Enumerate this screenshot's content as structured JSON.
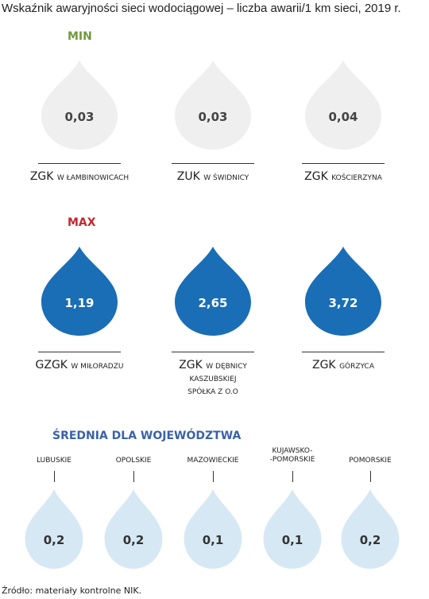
{
  "title": "Wskaźnik awaryjności sieci wodociągowej – liczba awarii/1 km sieci, 2019 r.",
  "min": {
    "heading": "MIN",
    "items": [
      {
        "value": "0,03",
        "name": "ZGK",
        "detail": "W ŁAMBINOWICACH"
      },
      {
        "value": "0,03",
        "name": "ZUK",
        "detail": "W ŚWIDNICY"
      },
      {
        "value": "0,04",
        "name": "ZGK",
        "detail": "KOŚCIERZYNA"
      }
    ]
  },
  "max": {
    "heading": "MAX",
    "items": [
      {
        "value": "1,19",
        "name": "GZGK",
        "detail": "W MIŁORADZU"
      },
      {
        "value": "2,65",
        "name": "ZGK",
        "detail": "W DĘBNICY\nKASZUBSKIEJ\nSPÓŁKA Z O.O"
      },
      {
        "value": "3,72",
        "name": "ZGK",
        "detail": "GÓRZYCA"
      }
    ]
  },
  "average": {
    "heading": "ŚREDNIA DLA WOJEWÓDZTWA",
    "items": [
      {
        "region": "LUBUSKIE",
        "value": "0,2"
      },
      {
        "region": "OPOLSKIE",
        "value": "0,2"
      },
      {
        "region": "MAZOWIECKIE",
        "value": "0,1"
      },
      {
        "region": "KUJAWSKO-\n-POMORSKIE",
        "value": "0,1"
      },
      {
        "region": "POMORSKIE",
        "value": "0,2"
      }
    ]
  },
  "source": "Źródło: materiały kontrolne NIK."
}
